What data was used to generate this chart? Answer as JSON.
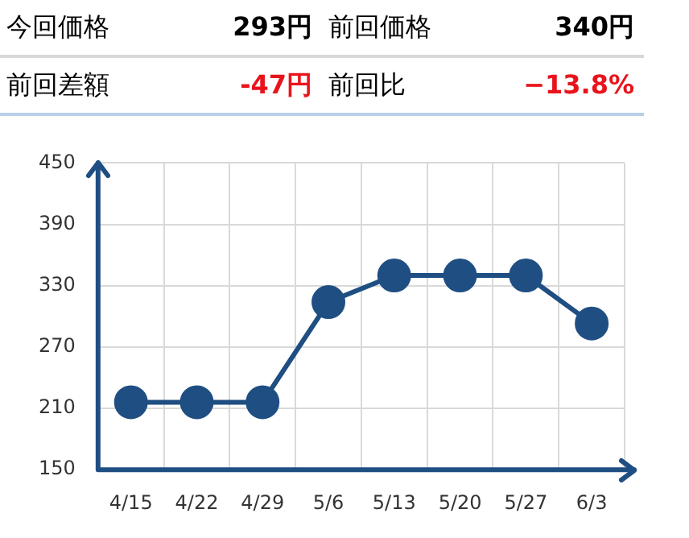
{
  "chart_data": {
    "type": "line",
    "annotations": [
      "今回価格",
      "293円",
      "前回価格",
      "340円",
      "前回差額",
      "-47円",
      "前回比",
      "−13.8%"
    ],
    "categories": [
      "4/15",
      "4/22",
      "4/29",
      "5/6",
      "5/13",
      "5/20",
      "5/27",
      "6/3"
    ],
    "series": [
      {
        "color": "#1f4e82",
        "values": [
          216,
          216,
          216,
          314,
          340,
          340,
          340,
          293
        ]
      }
    ],
    "ylim": [
      150,
      450
    ],
    "yticks": [
      150,
      210,
      270,
      330,
      390,
      450
    ],
    "grid": true,
    "marker": "circle",
    "line_style": "solid",
    "legend": false
  }
}
